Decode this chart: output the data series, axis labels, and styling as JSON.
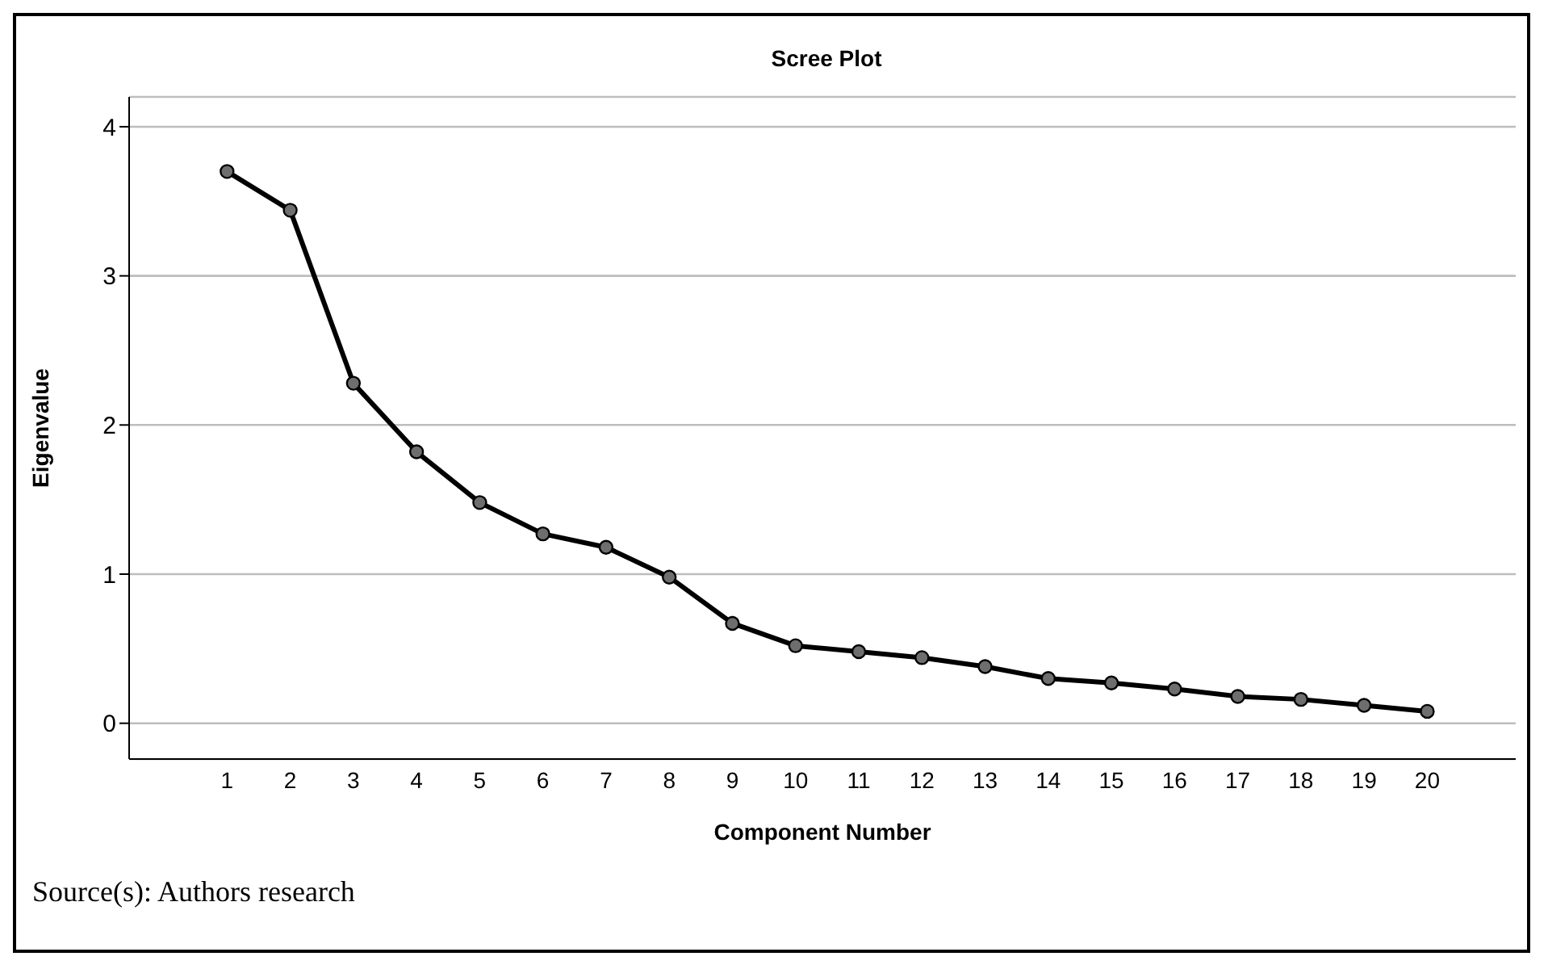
{
  "chart_data": {
    "type": "line",
    "title": "Scree Plot",
    "xlabel": "Component Number",
    "ylabel": "Eigenvalue",
    "x": [
      1,
      2,
      3,
      4,
      5,
      6,
      7,
      8,
      9,
      10,
      11,
      12,
      13,
      14,
      15,
      16,
      17,
      18,
      19,
      20
    ],
    "series": [
      {
        "color": "#000000",
        "values": [
          3.7,
          3.44,
          2.28,
          1.82,
          1.48,
          1.27,
          1.18,
          0.98,
          0.67,
          0.52,
          0.48,
          0.44,
          0.38,
          0.3,
          0.27,
          0.23,
          0.18,
          0.16,
          0.12,
          0.08
        ]
      }
    ],
    "xlim": [
      -0.55,
      21.4
    ],
    "xticks": [
      1,
      2,
      3,
      4,
      5,
      6,
      7,
      8,
      9,
      10,
      11,
      12,
      13,
      14,
      15,
      16,
      17,
      18,
      19,
      20
    ],
    "ylim": [
      -0.24,
      4.2
    ],
    "yticks": [
      0,
      1,
      2,
      3,
      4
    ],
    "grid": "y",
    "marker": "circle",
    "line_style": "solid",
    "legend": false,
    "annotations": [
      "Source(s): Authors research"
    ]
  }
}
